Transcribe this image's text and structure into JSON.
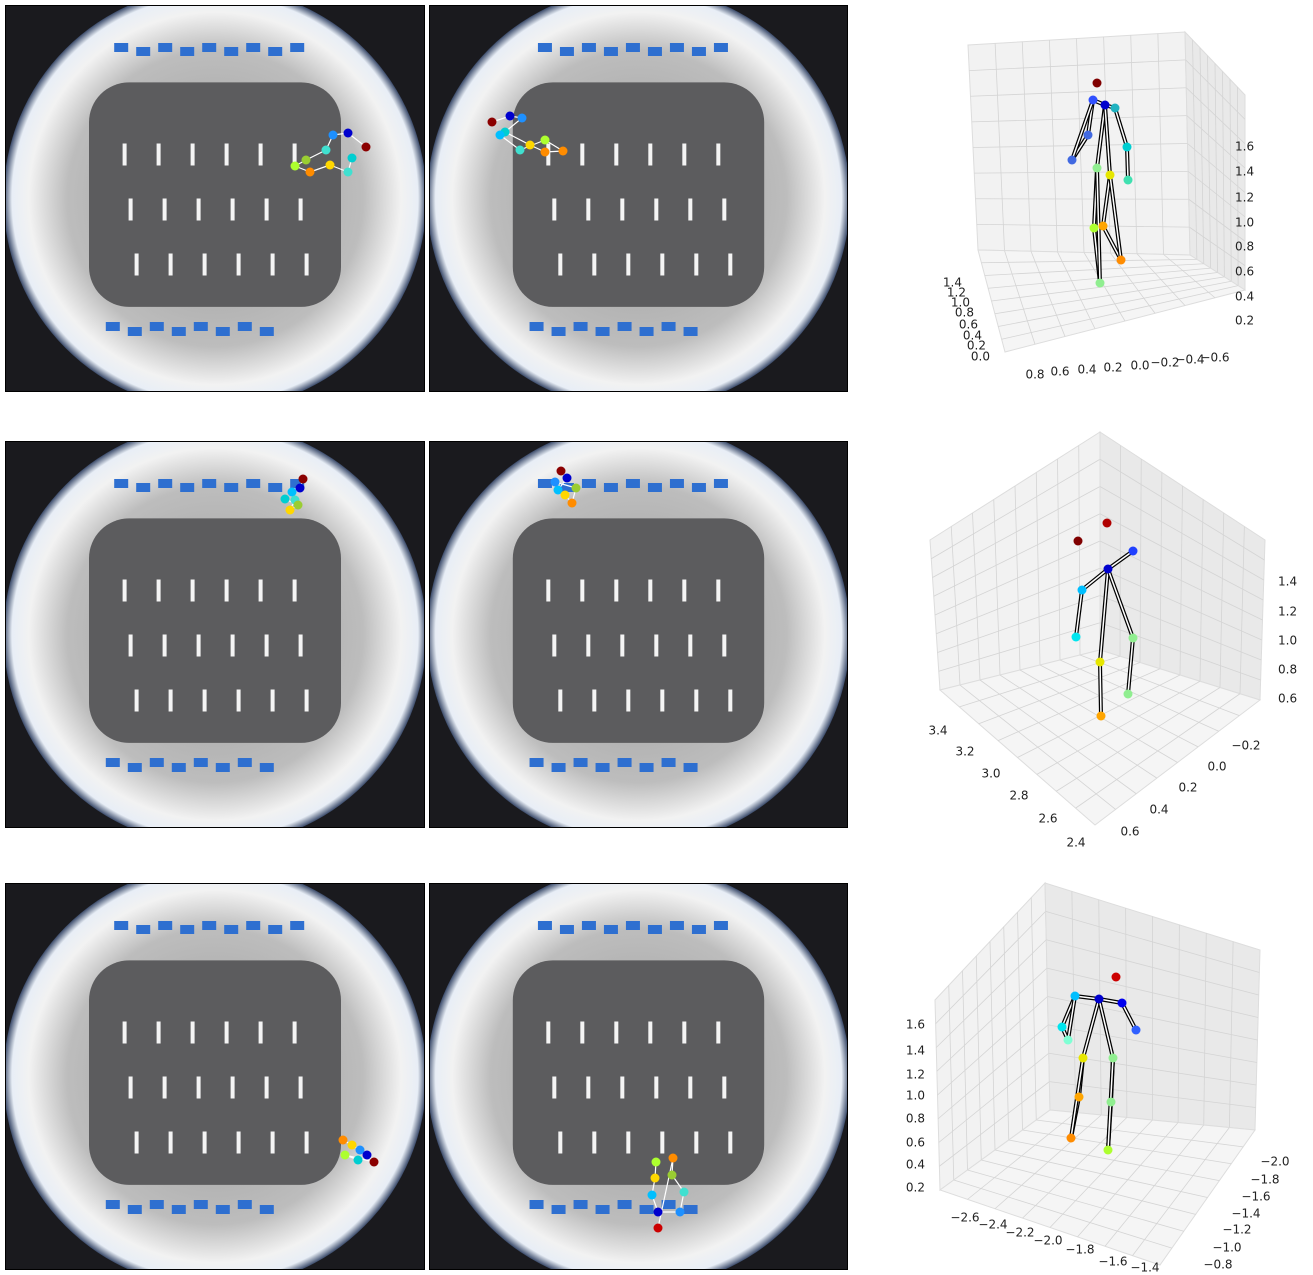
{
  "rows": [
    {
      "plot": {
        "z_ticks": [
          "1.6",
          "1.4",
          "1.2",
          "1.0",
          "0.8",
          "0.6",
          "0.4",
          "0.2"
        ],
        "y_ticks": [
          "1.4",
          "1.2",
          "1.0",
          "0.8",
          "0.6",
          "0.4",
          "0.2",
          "0.0"
        ],
        "x_ticks": [
          "0.8",
          "0.6",
          "0.4",
          "0.2",
          "0.0",
          "−0.2",
          "−0.4",
          "−0.6"
        ]
      }
    },
    {
      "plot": {
        "z_ticks": [
          "1.4",
          "1.2",
          "1.0",
          "0.8",
          "0.6"
        ],
        "y_ticks": [
          "3.4",
          "3.2",
          "3.0",
          "2.8",
          "2.6",
          "2.4"
        ],
        "x_ticks": [
          "−0.2",
          "0.0",
          "0.2",
          "0.4",
          "0.6"
        ]
      }
    },
    {
      "plot": {
        "z_ticks": [
          "1.6",
          "1.4",
          "1.2",
          "1.0",
          "0.8",
          "0.6",
          "0.4",
          "0.2"
        ],
        "y_ticks": [
          "−2.6",
          "−2.4",
          "−2.2",
          "−2.0",
          "−1.8",
          "−1.6",
          "−1.4"
        ],
        "x_ticks": [
          "−2.0",
          "−1.8",
          "−1.6",
          "−1.4",
          "−1.2",
          "−1.0",
          "−0.8"
        ]
      }
    }
  ]
}
